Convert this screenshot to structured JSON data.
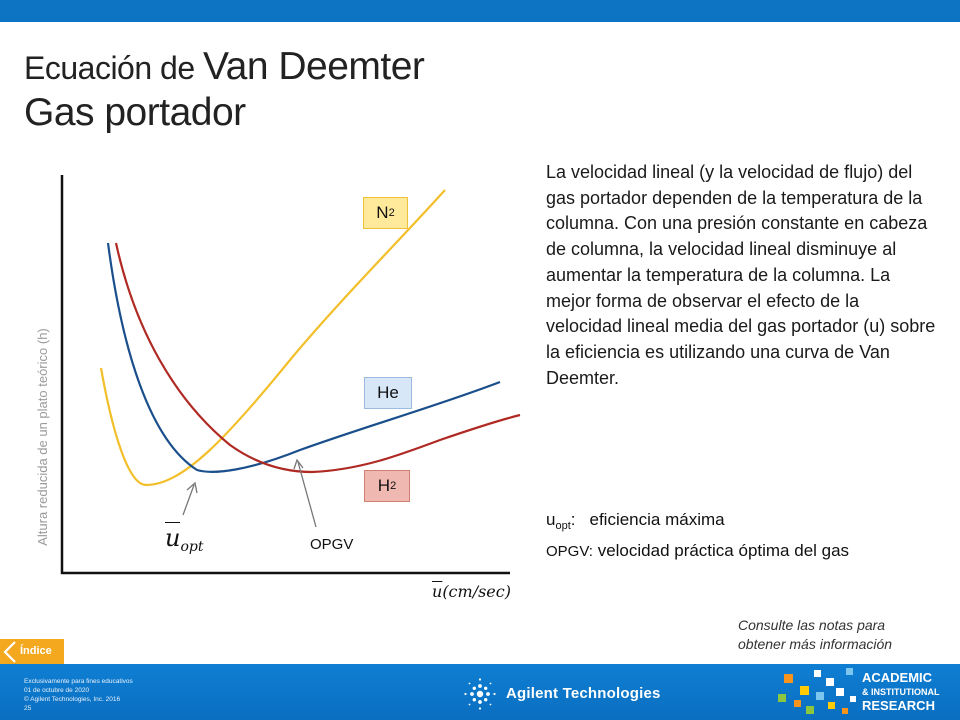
{
  "title": {
    "line1_prefix": "Ecuación de ",
    "line1_main": "Van Deemter",
    "line2": "Gas portador"
  },
  "chart": {
    "y_axis_label": "Altura reducida de un plato teórico (h)",
    "x_axis_label_u": "u",
    "x_axis_label_rest": "(cm/sec)",
    "series": [
      {
        "name_main": "N",
        "name_sub": "2",
        "color": "#f2bf2a"
      },
      {
        "name_main": "He",
        "name_sub": "",
        "color": "#1a4f8c"
      },
      {
        "name_main": "H",
        "name_sub": "2",
        "color": "#b02a24"
      }
    ],
    "annotation_uopt_main": "u",
    "annotation_uopt_sub": "opt",
    "annotation_opgv": "OPGV"
  },
  "paragraph": "La velocidad lineal (y la velocidad de flujo) del gas portador dependen de la temperatura de la columna. Con una presión constante en cabeza de columna, la velocidad lineal disminuye al aumentar la temperatura de la columna. La mejor forma de observar el efecto de la velocidad lineal media del gas portador (u) sobre la eficiencia es utilizando una curva de Van Deemter.",
  "definitions": {
    "uopt_key": "u",
    "uopt_key_sub": "opt",
    "uopt_colon": ":",
    "uopt_text": "eficiencia máxima",
    "opgv_key": "OPGV:",
    "opgv_text": " velocidad práctica óptima del gas"
  },
  "notes": {
    "line1": "Consulte las notas para",
    "line2": "obtener más información"
  },
  "nav": {
    "indice_label": "Índice"
  },
  "footer": {
    "legal": [
      "Exclusivamente para fines educativos",
      "01 de octubre de 2020",
      "© Agilent Technologies, Inc. 2016",
      "25"
    ],
    "brand": "Agilent Technologies",
    "air_line1": "ACADEMIC",
    "air_line2": "& INSTITUTIONAL",
    "air_line3": "RESEARCH"
  }
}
